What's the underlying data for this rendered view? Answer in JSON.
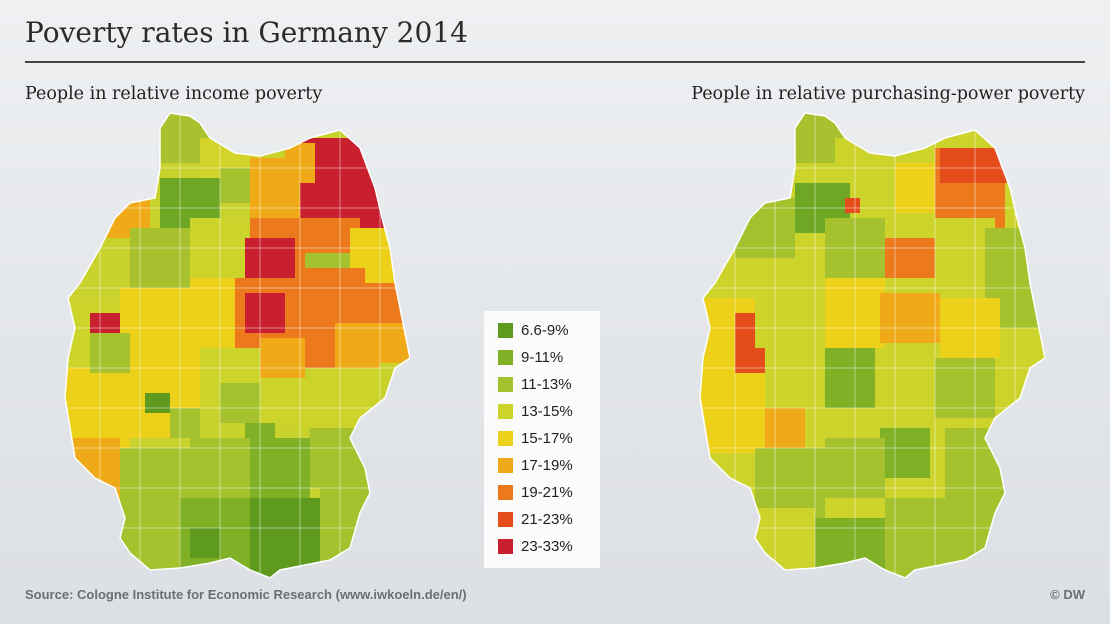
{
  "title": "Poverty rates in Germany 2014",
  "maps": [
    {
      "subtitle": "People in relative income poverty"
    },
    {
      "subtitle": "People in relative purchasing-power poverty"
    }
  ],
  "legend": [
    {
      "label": "6.6-9%",
      "color": "#5e9a1e"
    },
    {
      "label": "9-11%",
      "color": "#7fb025"
    },
    {
      "label": "11-13%",
      "color": "#a6c12e"
    },
    {
      "label": "13-15%",
      "color": "#ccd32a"
    },
    {
      "label": "15-17%",
      "color": "#ecd019"
    },
    {
      "label": "17-19%",
      "color": "#f0aa18"
    },
    {
      "label": "19-21%",
      "color": "#ec7a1c"
    },
    {
      "label": "21-23%",
      "color": "#e44d1b"
    },
    {
      "label": "23-33%",
      "color": "#c8202f"
    }
  ],
  "source": "Source: Cologne Institute for Economic Research (www.iwkoeln.de/en/)",
  "copyright": "© DW"
}
